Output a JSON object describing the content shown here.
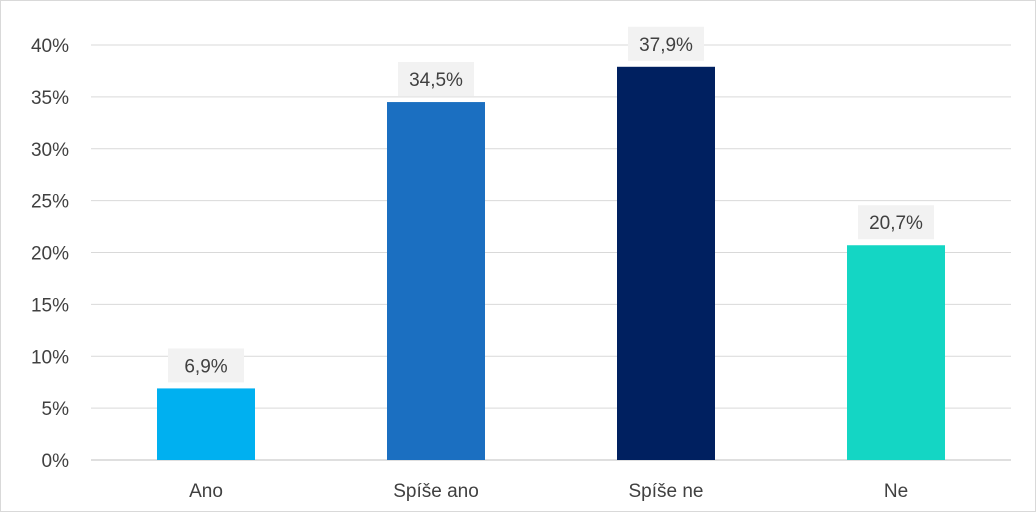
{
  "chart_data": {
    "type": "bar",
    "categories": [
      "Ano",
      "Spíše ano",
      "Spíše ne",
      "Ne"
    ],
    "values": [
      6.9,
      34.5,
      37.9,
      20.7
    ],
    "data_labels": [
      "6,9%",
      "34,5%",
      "37,9%",
      "20,7%"
    ],
    "colors": [
      "#00b0f0",
      "#1b6fc1",
      "#002060",
      "#14d6c4"
    ],
    "title": "",
    "xlabel": "",
    "ylabel": "",
    "ylim": [
      0,
      40
    ],
    "yticks": [
      0,
      5,
      10,
      15,
      20,
      25,
      30,
      35,
      40
    ],
    "ytick_labels": [
      "0%",
      "5%",
      "10%",
      "15%",
      "20%",
      "25%",
      "30%",
      "35%",
      "40%"
    ],
    "grid": true,
    "legend": "none"
  }
}
